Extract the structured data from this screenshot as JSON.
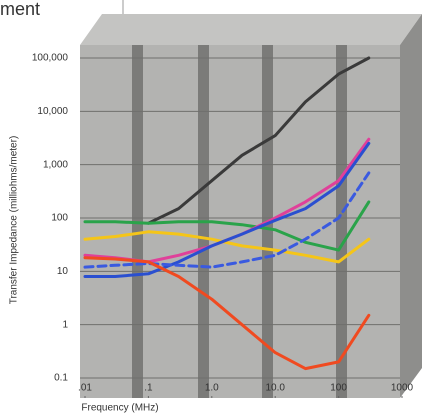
{
  "chart_data": {
    "type": "line",
    "title": "ment",
    "x_label": "Frequency (MHz)",
    "y_label": "Transfer Impedance (milliohms/meter)",
    "xscale": "log",
    "yscale": "log",
    "grid": true,
    "xlim": [
      0.01,
      1000
    ],
    "ylim": [
      0.1,
      100000
    ],
    "xticks": [
      {
        "value": 0.01,
        "label": ".01"
      },
      {
        "value": 0.1,
        "label": ".1"
      },
      {
        "value": 1,
        "label": "1.0"
      },
      {
        "value": 10,
        "label": "10.0"
      },
      100,
      1000
    ],
    "yticks": [
      0.1,
      1,
      10,
      100,
      {
        "value": 1000,
        "label": "1,000"
      },
      {
        "value": 10000,
        "label": "10,000"
      },
      {
        "value": 100000,
        "label": "100,000"
      }
    ],
    "x": [
      0.01,
      0.03,
      0.1,
      0.3,
      1,
      3,
      10,
      30,
      100,
      300
    ],
    "series": [
      {
        "color": "#3a3a3a",
        "values": [
          null,
          null,
          80,
          150,
          500,
          1500,
          3500,
          15000,
          50000,
          100000
        ]
      },
      {
        "color": "#2aa34a",
        "values": [
          85,
          85,
          80,
          85,
          85,
          75,
          60,
          35,
          25,
          200
        ]
      },
      {
        "color": "#f5c518",
        "values": [
          40,
          45,
          55,
          50,
          40,
          30,
          25,
          20,
          15,
          40
        ]
      },
      {
        "color": "#e0409a",
        "values": [
          20,
          18,
          15,
          20,
          30,
          50,
          100,
          200,
          500,
          3000
        ]
      },
      {
        "color": "#2a4fd0",
        "values": [
          8,
          8,
          9,
          15,
          30,
          50,
          90,
          150,
          400,
          2500
        ]
      },
      {
        "color": "#3a5ae0",
        "dashed": true,
        "values": [
          12,
          13,
          14,
          13,
          12,
          15,
          20,
          40,
          100,
          700
        ]
      },
      {
        "color": "#f04a20",
        "values": [
          18,
          17,
          15,
          8,
          3,
          1,
          0.3,
          0.15,
          0.2,
          1.5
        ]
      }
    ]
  }
}
